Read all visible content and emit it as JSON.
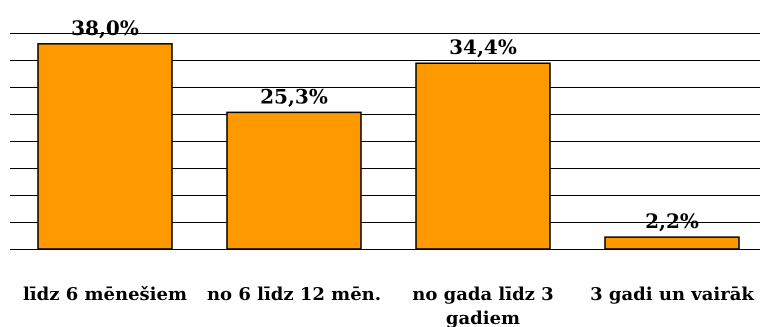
{
  "chart_data": {
    "type": "bar",
    "categories": [
      [
        "līdz 6 mēnešiem"
      ],
      [
        "no 6 līdz 12 mēn."
      ],
      [
        "no gada līdz 3",
        "gadiem"
      ],
      [
        "3 gadi un vairāk"
      ]
    ],
    "values": [
      38.0,
      25.3,
      34.4,
      2.2
    ],
    "data_labels": [
      "38,0%",
      "25,3%",
      "34,4%",
      "2,2%"
    ],
    "ylim": [
      0,
      40
    ],
    "grid": true,
    "legend": "none",
    "colors": {
      "bar": "#FF9900",
      "bar_stroke": "#000000",
      "grid": "#000000"
    }
  }
}
